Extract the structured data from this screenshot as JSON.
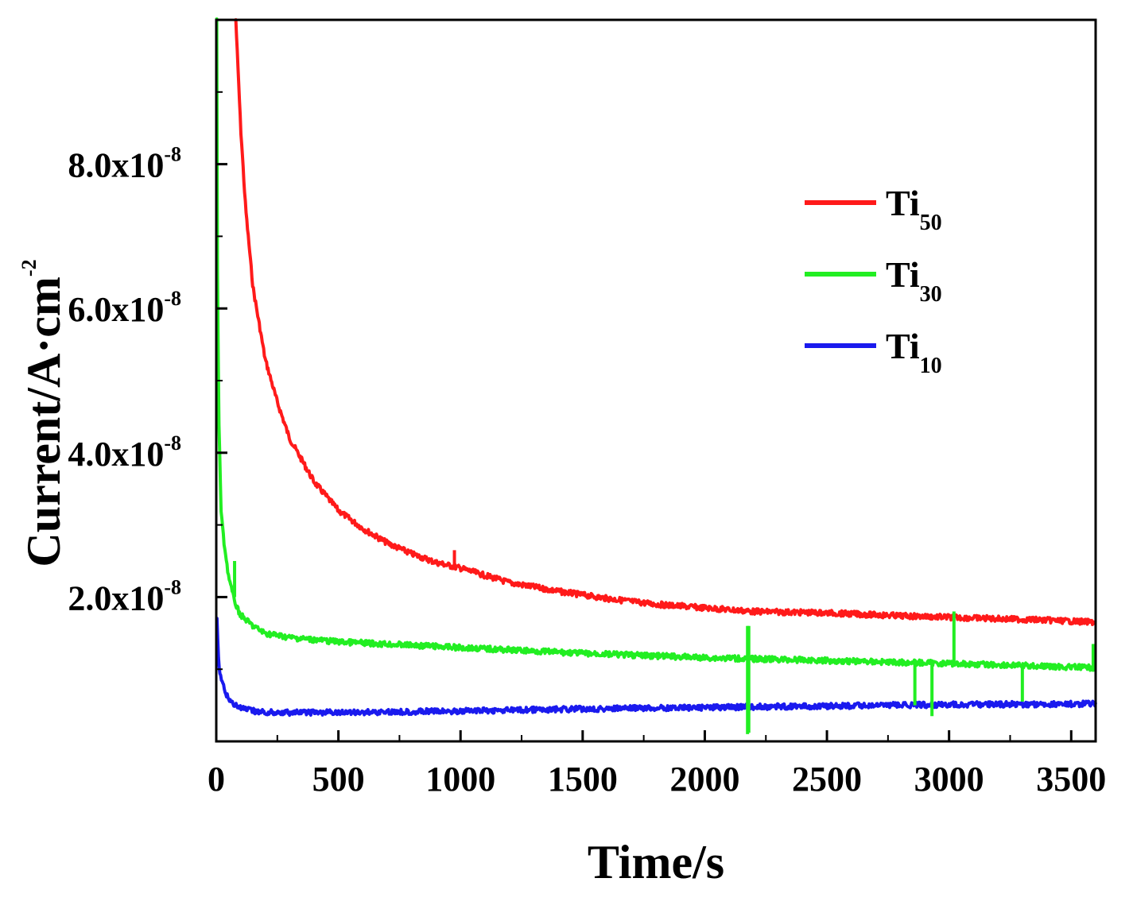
{
  "chart_data": {
    "type": "line",
    "title": "",
    "xlabel": "Time/s",
    "ylabel": {
      "text": "Current/A·cm",
      "superscript": "-2"
    },
    "xlim": [
      0,
      3600
    ],
    "ylim": [
      0,
      1e-07
    ],
    "grid": false,
    "legend_position": "top-right",
    "x_ticks": [
      {
        "value": 0,
        "label": "0"
      },
      {
        "value": 500,
        "label": "500"
      },
      {
        "value": 1000,
        "label": "1000"
      },
      {
        "value": 1500,
        "label": "1500"
      },
      {
        "value": 2000,
        "label": "2000"
      },
      {
        "value": 2500,
        "label": "2500"
      },
      {
        "value": 3000,
        "label": "3000"
      },
      {
        "value": 3500,
        "label": "3500"
      }
    ],
    "y_ticks": [
      {
        "value": 2e-08,
        "mantissa": "2.0x10",
        "exponent": "-8"
      },
      {
        "value": 4e-08,
        "mantissa": "4.0x10",
        "exponent": "-8"
      },
      {
        "value": 6e-08,
        "mantissa": "6.0x10",
        "exponent": "-8"
      },
      {
        "value": 8e-08,
        "mantissa": "8.0x10",
        "exponent": "-8"
      }
    ],
    "series": [
      {
        "name": "Ti50",
        "base": "Ti",
        "subscript": "50",
        "color": "#ff1a1a",
        "x": [
          80,
          100,
          120,
          150,
          200,
          250,
          300,
          400,
          500,
          600,
          700,
          800,
          900,
          1000,
          1200,
          1400,
          1600,
          1800,
          2000,
          2200,
          2500,
          2800,
          3000,
          3200,
          3400,
          3600
        ],
        "y": [
          1e-07,
          8.5e-08,
          7.4e-08,
          6.3e-08,
          5.3e-08,
          4.7e-08,
          4.2e-08,
          3.6e-08,
          3.2e-08,
          2.95e-08,
          2.75e-08,
          2.6e-08,
          2.48e-08,
          2.4e-08,
          2.2e-08,
          2.08e-08,
          1.98e-08,
          1.9e-08,
          1.85e-08,
          1.8e-08,
          1.78e-08,
          1.74e-08,
          1.72e-08,
          1.7e-08,
          1.68e-08,
          1.65e-08
        ]
      },
      {
        "name": "Ti30",
        "base": "Ti",
        "subscript": "30",
        "color": "#22ee22",
        "x": [
          2,
          5,
          10,
          20,
          30,
          50,
          70,
          85,
          100,
          150,
          200,
          300,
          500,
          1000,
          1500,
          2000,
          2500,
          3000,
          3300,
          3600
        ],
        "y": [
          1e-07,
          6.5e-08,
          4.5e-08,
          3.2e-08,
          2.8e-08,
          2.3e-08,
          2e-08,
          1.85e-08,
          1.75e-08,
          1.6e-08,
          1.5e-08,
          1.44e-08,
          1.38e-08,
          1.3e-08,
          1.22e-08,
          1.16e-08,
          1.12e-08,
          1.08e-08,
          1.05e-08,
          1.02e-08
        ]
      },
      {
        "name": "Ti10",
        "base": "Ti",
        "subscript": "10",
        "color": "#1a1aee",
        "x": [
          3,
          10,
          20,
          40,
          60,
          100,
          150,
          200,
          300,
          500,
          1000,
          1500,
          2000,
          2500,
          3000,
          3600
        ],
        "y": [
          1.7e-08,
          1.05e-08,
          8.5e-09,
          6.5e-09,
          5.5e-09,
          4.6e-09,
          4.2e-09,
          4e-09,
          4e-09,
          4e-09,
          4.2e-09,
          4.5e-09,
          4.7e-09,
          4.9e-09,
          5.1e-09,
          5.2e-09
        ]
      }
    ],
    "spikes": [
      {
        "series": "Ti50",
        "x": 975,
        "y_from": 2.4e-08,
        "y_to": 2.65e-08
      },
      {
        "series": "Ti30",
        "x": 75,
        "y_from": 2e-08,
        "y_to": 2.5e-08
      },
      {
        "series": "Ti30",
        "x": 2175,
        "y_from": 1e-09,
        "y_to": 1.6e-08
      },
      {
        "series": "Ti30",
        "x": 2180,
        "y_from": 1.6e-08,
        "y_to": 1.2e-09
      },
      {
        "series": "Ti30",
        "x": 2860,
        "y_from": 1.1e-08,
        "y_to": 5e-09
      },
      {
        "series": "Ti30",
        "x": 2930,
        "y_from": 1.1e-08,
        "y_to": 3.5e-09
      },
      {
        "series": "Ti30",
        "x": 3020,
        "y_from": 1.08e-08,
        "y_to": 1.8e-08
      },
      {
        "series": "Ti30",
        "x": 3300,
        "y_from": 1.05e-08,
        "y_to": 5.5e-09
      },
      {
        "series": "Ti30",
        "x": 3590,
        "y_from": 1.02e-08,
        "y_to": 1.35e-08
      }
    ]
  }
}
